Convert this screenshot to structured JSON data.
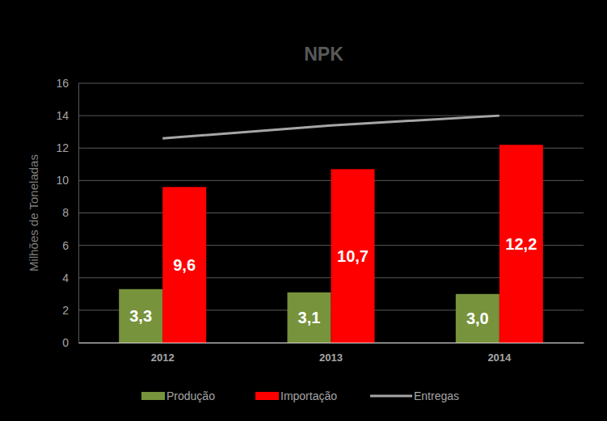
{
  "chart_data": {
    "type": "bar",
    "title": "NPK",
    "y_label": "Milhões de Toneladas",
    "categories": [
      "2012",
      "2013",
      "2014"
    ],
    "series": [
      {
        "name": "Produção",
        "color": "#77933C",
        "values": [
          3.3,
          3.1,
          3.0
        ],
        "value_labels": [
          "3,3",
          "3,1",
          "3,0"
        ],
        "data_labels": true
      },
      {
        "name": "Importação",
        "color": "#FF0000",
        "values": [
          9.6,
          10.7,
          12.2
        ],
        "value_labels": [
          "9,6",
          "10,7",
          "12,2"
        ],
        "data_labels": true
      },
      {
        "name": "Entregas",
        "color": "#A6A6A6",
        "type": "line",
        "values": [
          12.6,
          13.4,
          14.0
        ]
      }
    ],
    "ylim": [
      0,
      16
    ],
    "yticks": [
      0,
      2,
      4,
      6,
      8,
      10,
      12,
      14,
      16
    ],
    "grid": true,
    "legend": "bottom"
  }
}
